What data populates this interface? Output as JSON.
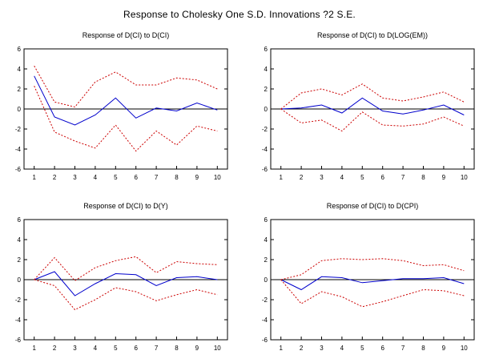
{
  "figure_title": "Response to Cholesky One S.D. Innovations ?2 S.E.",
  "colors": {
    "response": "#0000cc",
    "bands": "#cc0000",
    "zero_line": "#000000"
  },
  "chart_data": [
    {
      "type": "line",
      "title": "Response of D(CI) to D(CI)",
      "x": [
        1,
        2,
        3,
        4,
        5,
        6,
        7,
        8,
        9,
        10
      ],
      "ylim": [
        -6,
        6
      ],
      "yticks": [
        -6,
        -4,
        -2,
        0,
        2,
        4,
        6
      ],
      "series": [
        {
          "role": "response",
          "values": [
            3.3,
            -0.8,
            -1.6,
            -0.6,
            1.1,
            -0.9,
            0.1,
            -0.2,
            0.6,
            -0.1
          ]
        },
        {
          "role": "upper",
          "values": [
            4.3,
            0.7,
            0.2,
            2.7,
            3.7,
            2.4,
            2.4,
            3.1,
            2.9,
            2.0
          ]
        },
        {
          "role": "lower",
          "values": [
            2.3,
            -2.3,
            -3.2,
            -3.9,
            -1.6,
            -4.2,
            -2.2,
            -3.6,
            -1.7,
            -2.2
          ]
        }
      ]
    },
    {
      "type": "line",
      "title": "Response of D(CI) to D(LOG(EM))",
      "x": [
        1,
        2,
        3,
        4,
        5,
        6,
        7,
        8,
        9,
        10
      ],
      "ylim": [
        -6,
        6
      ],
      "yticks": [
        -6,
        -4,
        -2,
        0,
        2,
        4,
        6
      ],
      "series": [
        {
          "role": "response",
          "values": [
            0.0,
            0.1,
            0.4,
            -0.4,
            1.1,
            -0.2,
            -0.5,
            -0.1,
            0.4,
            -0.6
          ]
        },
        {
          "role": "upper",
          "values": [
            0.0,
            1.6,
            2.0,
            1.4,
            2.5,
            1.1,
            0.8,
            1.2,
            1.7,
            0.7
          ]
        },
        {
          "role": "lower",
          "values": [
            0.0,
            -1.4,
            -1.1,
            -2.2,
            -0.3,
            -1.6,
            -1.7,
            -1.5,
            -0.8,
            -1.7
          ]
        }
      ]
    },
    {
      "type": "line",
      "title": "Response of D(CI) to D(Y)",
      "x": [
        1,
        2,
        3,
        4,
        5,
        6,
        7,
        8,
        9,
        10
      ],
      "ylim": [
        -6,
        6
      ],
      "yticks": [
        -6,
        -4,
        -2,
        0,
        2,
        4,
        6
      ],
      "series": [
        {
          "role": "response",
          "values": [
            0.0,
            0.8,
            -1.6,
            -0.4,
            0.6,
            0.5,
            -0.6,
            0.2,
            0.3,
            0.0
          ]
        },
        {
          "role": "upper",
          "values": [
            0.0,
            2.2,
            -0.1,
            1.2,
            1.9,
            2.3,
            0.7,
            1.8,
            1.6,
            1.5
          ]
        },
        {
          "role": "lower",
          "values": [
            0.0,
            -0.6,
            -3.0,
            -2.0,
            -0.8,
            -1.2,
            -2.1,
            -1.5,
            -1.0,
            -1.5
          ]
        }
      ]
    },
    {
      "type": "line",
      "title": "Response of D(CI) to D(CPI)",
      "x": [
        1,
        2,
        3,
        4,
        5,
        6,
        7,
        8,
        9,
        10
      ],
      "ylim": [
        -6,
        6
      ],
      "yticks": [
        -6,
        -4,
        -2,
        0,
        2,
        4,
        6
      ],
      "series": [
        {
          "role": "response",
          "values": [
            0.0,
            -1.0,
            0.3,
            0.2,
            -0.3,
            -0.1,
            0.1,
            0.1,
            0.2,
            -0.4
          ]
        },
        {
          "role": "upper",
          "values": [
            0.0,
            0.5,
            1.9,
            2.1,
            2.0,
            2.1,
            1.9,
            1.4,
            1.5,
            0.9
          ]
        },
        {
          "role": "lower",
          "values": [
            0.0,
            -2.4,
            -1.2,
            -1.7,
            -2.7,
            -2.2,
            -1.6,
            -1.0,
            -1.1,
            -1.6
          ]
        }
      ]
    }
  ]
}
